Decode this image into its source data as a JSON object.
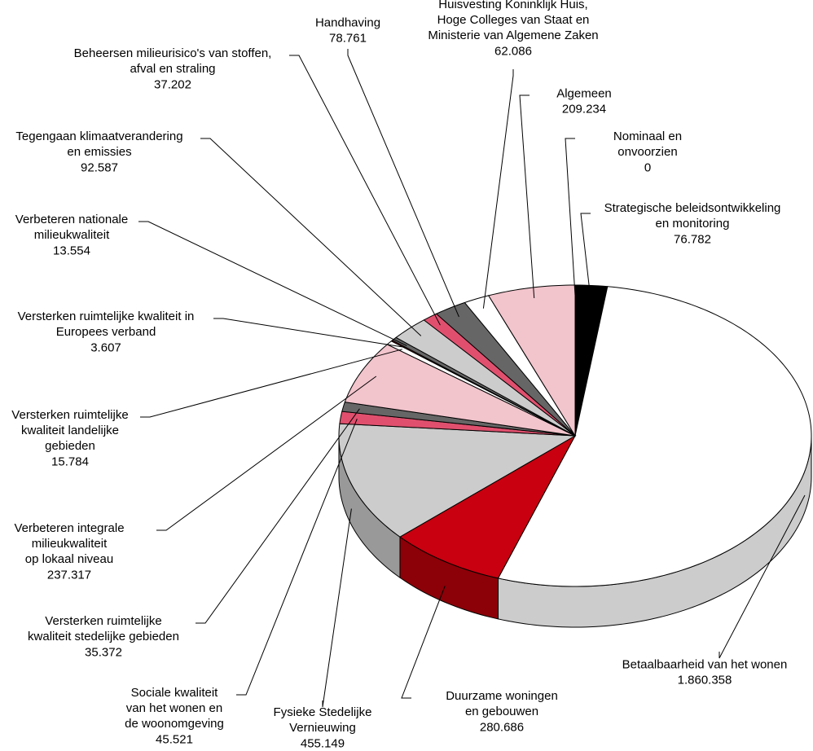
{
  "chart_data": {
    "type": "pie3d",
    "categories": [
      "Strategische beleidsontwikkeling\nen monitoring",
      "Betaalbaarheid van het wonen",
      "Duurzame woningen\nen gebouwen",
      "Fysieke Stedelijke\nVernieuwing",
      "Sociale kwaliteit\nvan het wonen en\nde woonomgeving",
      "Versterken ruimtelijke\nkwaliteit stedelijke gebieden",
      "Verbeteren integrale\nmilieukwaliteit\nop lokaal niveau",
      "Versterken ruimtelijke\nkwaliteit landelijke\ngebieden",
      "Versterken ruimtelijke kwaliteit in\nEuropees verband",
      "Verbeteren nationale\nmilieukwaliteit",
      "Tegengaan klimaatverandering\nen emissies",
      "Beheersen milieurisico's van stoffen,\nafval en straling",
      "Handhaving",
      "Huisvesting Koninklijk Huis,\nHoge Colleges van Staat en\nMinisterie van Algemene Zaken",
      "Algemeen",
      "Nominaal en\nonvoorzien"
    ],
    "values": [
      76782,
      1860358,
      280686,
      455149,
      45521,
      35372,
      237317,
      15784,
      3607,
      13554,
      92587,
      37202,
      78761,
      62086,
      209234,
      0
    ],
    "value_labels": [
      "76.782",
      "1.860.358",
      "280.686",
      "455.149",
      "45.521",
      "35.372",
      "237.317",
      "15.784",
      "3.607",
      "13.554",
      "92.587",
      "37.202",
      "78.761",
      "62.086",
      "209.234",
      "0"
    ],
    "colors": [
      "#000000",
      "#ffffff",
      "#c8000f",
      "#cccccc",
      "#e0506e",
      "#666666",
      "#f2c4cc",
      "#ffffff",
      "#c8000f",
      "#666666",
      "#cccccc",
      "#e0506e",
      "#666666",
      "#ffffff",
      "#f2c4cc",
      "#000000"
    ],
    "side_colors": [
      "#000000",
      "#cccccc",
      "#8c0008",
      "#999999",
      "#a03050",
      "#444444",
      "#c8a0a8",
      "#cccccc",
      "#8c0008",
      "#444444",
      "#999999",
      "#a03050",
      "#444444",
      "#cccccc",
      "#c8a0a8",
      "#000000"
    ]
  }
}
